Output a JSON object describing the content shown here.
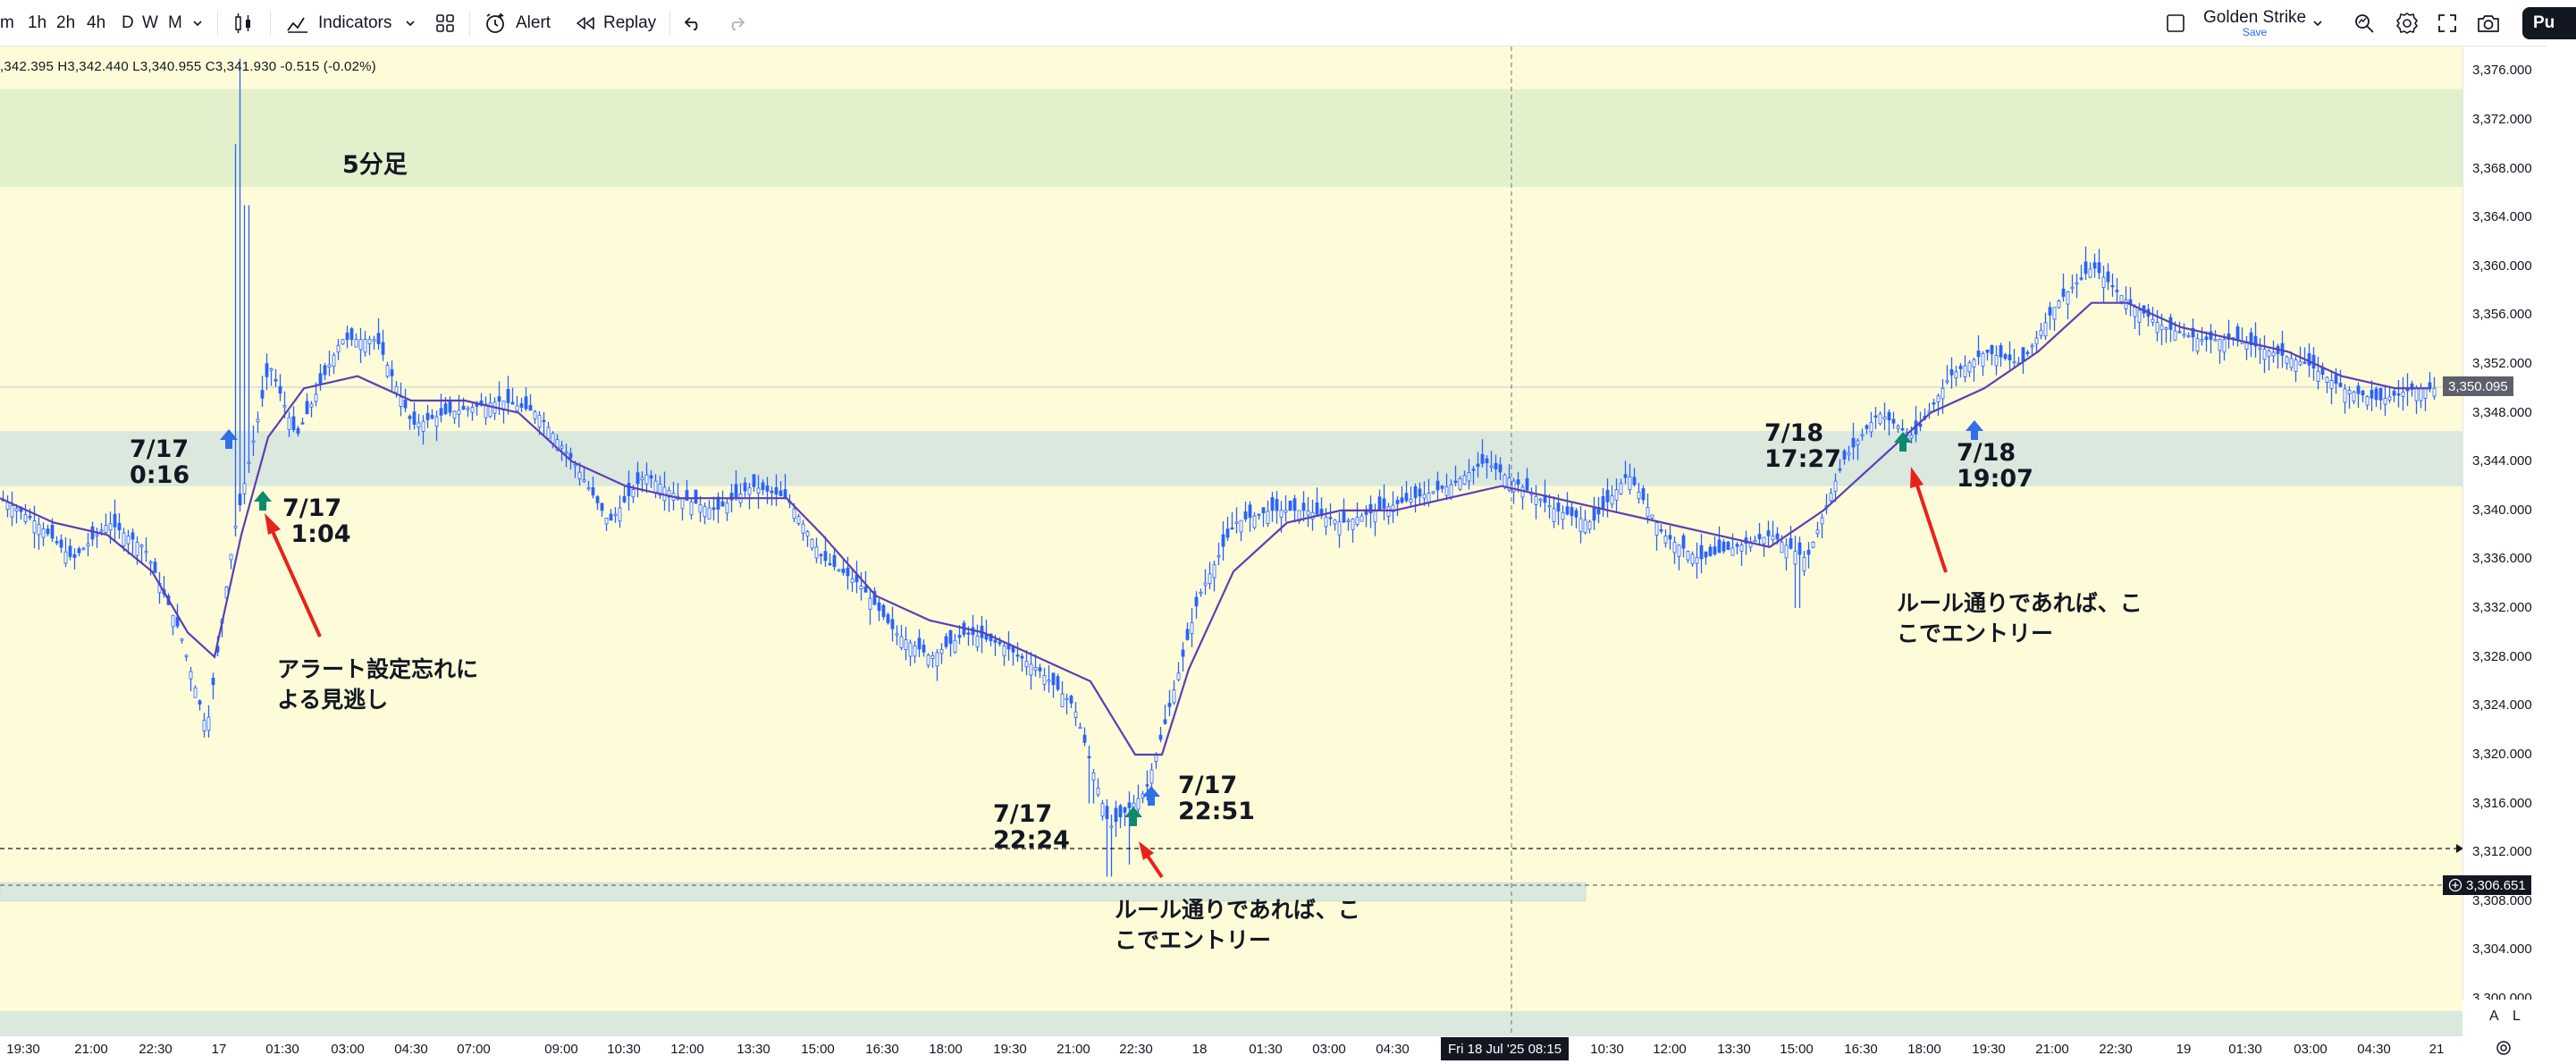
{
  "toolbar": {
    "intervals": [
      "m",
      "1h",
      "2h",
      "4h",
      "D",
      "W",
      "M"
    ],
    "indicators_label": "Indicators",
    "alert_label": "Alert",
    "replay_label": "Replay",
    "template_name": "Golden Strike",
    "template_save": "Save",
    "publish_label": "Pu"
  },
  "legend": {
    "ohlc": ",342.395  H3,342.440  L3,340.955  C3,341.930  -0.515 (-0.02%)"
  },
  "pane_title": "5分足",
  "annotations": [
    {
      "id": "a1",
      "text": "7/17\n0:16"
    },
    {
      "id": "a2",
      "text": "7/17\n 1:04"
    },
    {
      "id": "a3",
      "text": "7/17\n22:24"
    },
    {
      "id": "a4",
      "text": "7/17\n22:51"
    },
    {
      "id": "a5",
      "text": "7/18\n17:27"
    },
    {
      "id": "a6",
      "text": "7/18\n19:07"
    }
  ],
  "notes": [
    {
      "id": "n1",
      "text": "アラート設定忘れに\nよる見逃し"
    },
    {
      "id": "n2",
      "text": "ルール通りであれば、こ\nこでエントリー"
    },
    {
      "id": "n3",
      "text": "ルール通りであれば、こ\nこでエントリー"
    }
  ],
  "price_scale": {
    "ticks": [
      "3,376.000",
      "3,372.000",
      "3,368.000",
      "3,364.000",
      "3,360.000",
      "3,356.000",
      "3,352.000",
      "3,348.000",
      "3,344.000",
      "3,340.000",
      "3,336.000",
      "3,332.000",
      "3,328.000",
      "3,324.000",
      "3,320.000",
      "3,316.000",
      "3,312.000",
      "3,308.000",
      "3,304.000",
      "3,300.000"
    ],
    "last_price": "3,350.095",
    "crosshair_price": "3,306.651"
  },
  "time_scale": {
    "ticks": [
      "19:30",
      "21:00",
      "22:30",
      "17",
      "01:30",
      "03:00",
      "04:30",
      "07:00",
      "09:00",
      "10:30",
      "12:00",
      "13:30",
      "15:00",
      "16:30",
      "18:00",
      "19:30",
      "21:00",
      "22:30",
      "18",
      "01:30",
      "03:00",
      "04:30",
      "10:30",
      "12:00",
      "13:30",
      "15:00",
      "16:30",
      "18:00",
      "19:30",
      "21:00",
      "22:30",
      "19",
      "01:30",
      "03:00",
      "04:30",
      "21"
    ],
    "crosshair_time": "Fri 18 Jul '25   08:15"
  },
  "scale_buttons": {
    "auto": "A",
    "log": "L"
  },
  "colors": {
    "chart_bg": "#fdfbd8",
    "supply_zone": "#e3f0cc",
    "demand_zone": "#dbe8de",
    "candle": "#2962ff",
    "ma_line": "#5b3fb5",
    "entry_arrow_green": "#0d8a6a",
    "entry_arrow_blue": "#2f6fe8",
    "pointer_red": "#e8221b"
  },
  "chart_data": {
    "type": "line",
    "title": "5分足",
    "ylim": [
      3297,
      3378
    ],
    "price_series": [
      [
        0,
        3341
      ],
      [
        40,
        3339
      ],
      [
        80,
        3336
      ],
      [
        120,
        3339
      ],
      [
        160,
        3337
      ],
      [
        200,
        3330
      ],
      [
        230,
        3322
      ],
      [
        260,
        3338
      ],
      [
        300,
        3352
      ],
      [
        330,
        3346
      ],
      [
        380,
        3354
      ],
      [
        420,
        3354
      ],
      [
        460,
        3347
      ],
      [
        500,
        3348
      ],
      [
        560,
        3349
      ],
      [
        600,
        3348
      ],
      [
        640,
        3344
      ],
      [
        680,
        3339
      ],
      [
        720,
        3343
      ],
      [
        760,
        3341
      ],
      [
        800,
        3340
      ],
      [
        840,
        3342
      ],
      [
        880,
        3341
      ],
      [
        920,
        3336
      ],
      [
        960,
        3334
      ],
      [
        1000,
        3330
      ],
      [
        1040,
        3328
      ],
      [
        1080,
        3330
      ],
      [
        1120,
        3329
      ],
      [
        1160,
        3327
      ],
      [
        1200,
        3324
      ],
      [
        1240,
        3314
      ],
      [
        1280,
        3317
      ],
      [
        1300,
        3322
      ],
      [
        1340,
        3333
      ],
      [
        1380,
        3339
      ],
      [
        1420,
        3340
      ],
      [
        1460,
        3340
      ],
      [
        1500,
        3339
      ],
      [
        1540,
        3340
      ],
      [
        1580,
        3341
      ],
      [
        1620,
        3342
      ],
      [
        1660,
        3344
      ],
      [
        1700,
        3342
      ],
      [
        1740,
        3340
      ],
      [
        1780,
        3339
      ],
      [
        1820,
        3343
      ],
      [
        1860,
        3338
      ],
      [
        1900,
        3336
      ],
      [
        1940,
        3337
      ],
      [
        1980,
        3338
      ],
      [
        2020,
        3336
      ],
      [
        2060,
        3344
      ],
      [
        2100,
        3348
      ],
      [
        2140,
        3346
      ],
      [
        2180,
        3351
      ],
      [
        2220,
        3353
      ],
      [
        2260,
        3352
      ],
      [
        2300,
        3357
      ],
      [
        2340,
        3360
      ],
      [
        2380,
        3357
      ],
      [
        2420,
        3355
      ],
      [
        2460,
        3354
      ],
      [
        2500,
        3354
      ],
      [
        2540,
        3353
      ],
      [
        2580,
        3352
      ],
      [
        2620,
        3350
      ],
      [
        2660,
        3349
      ],
      [
        2700,
        3350
      ],
      [
        2720,
        3350
      ]
    ],
    "ma_series": [
      [
        0,
        3341
      ],
      [
        60,
        3339
      ],
      [
        120,
        3338
      ],
      [
        170,
        3335
      ],
      [
        210,
        3330
      ],
      [
        240,
        3328
      ],
      [
        270,
        3338
      ],
      [
        300,
        3346
      ],
      [
        340,
        3350
      ],
      [
        400,
        3351
      ],
      [
        460,
        3349
      ],
      [
        520,
        3349
      ],
      [
        580,
        3348
      ],
      [
        640,
        3344
      ],
      [
        700,
        3342
      ],
      [
        760,
        3341
      ],
      [
        820,
        3341
      ],
      [
        880,
        3341
      ],
      [
        920,
        3338
      ],
      [
        980,
        3333
      ],
      [
        1040,
        3331
      ],
      [
        1100,
        3330
      ],
      [
        1160,
        3328
      ],
      [
        1220,
        3326
      ],
      [
        1270,
        3320
      ],
      [
        1300,
        3320
      ],
      [
        1330,
        3327
      ],
      [
        1380,
        3335
      ],
      [
        1440,
        3339
      ],
      [
        1500,
        3340
      ],
      [
        1560,
        3340
      ],
      [
        1620,
        3341
      ],
      [
        1680,
        3342
      ],
      [
        1740,
        3341
      ],
      [
        1800,
        3340
      ],
      [
        1860,
        3339
      ],
      [
        1920,
        3338
      ],
      [
        1980,
        3337
      ],
      [
        2040,
        3340
      ],
      [
        2100,
        3344
      ],
      [
        2160,
        3348
      ],
      [
        2220,
        3350
      ],
      [
        2280,
        3353
      ],
      [
        2340,
        3357
      ],
      [
        2380,
        3357
      ],
      [
        2440,
        3355
      ],
      [
        2500,
        3354
      ],
      [
        2560,
        3353
      ],
      [
        2620,
        3351
      ],
      [
        2680,
        3350
      ],
      [
        2720,
        3350
      ]
    ],
    "zones": [
      {
        "name": "supply",
        "from": 3366.5,
        "to": 3374.5
      },
      {
        "name": "demand-upper",
        "from": 3342,
        "to": 3346.5
      },
      {
        "name": "demand-lower",
        "from": 3308,
        "to": 3309.5
      },
      {
        "name": "demand-bottom",
        "from": 3297,
        "to": 3299
      }
    ],
    "last_price": 3350.095,
    "crosshair_price": 3306.651
  }
}
